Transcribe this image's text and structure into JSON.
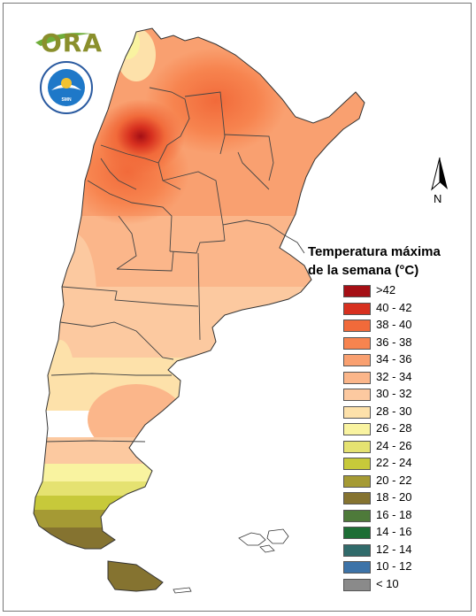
{
  "logo": {
    "text": "ORA"
  },
  "seal": {
    "text": "SERVICIO METEOROLÓGICO NACIONAL · ARGENTINA"
  },
  "north_arrow": {
    "label": "N"
  },
  "legend": {
    "title_line1": "Temperatura máxima",
    "title_line2": "de la semana (°C)",
    "items": [
      {
        "label": ">42",
        "color": "#a50f15"
      },
      {
        "label": "40 - 42",
        "color": "#d7301f"
      },
      {
        "label": "38 - 40",
        "color": "#f16a3a"
      },
      {
        "label": "36 - 38",
        "color": "#f7844f"
      },
      {
        "label": "34 - 36",
        "color": "#f9a070"
      },
      {
        "label": "32 - 34",
        "color": "#fbb68a"
      },
      {
        "label": "30 - 32",
        "color": "#fcc9a0"
      },
      {
        "label": "28 - 30",
        "color": "#fde1aa"
      },
      {
        "label": "26 - 28",
        "color": "#f9f3a0"
      },
      {
        "label": "24 - 26",
        "color": "#e5e271"
      },
      {
        "label": "22 - 24",
        "color": "#c7c93a"
      },
      {
        "label": "20 - 22",
        "color": "#a59a34"
      },
      {
        "label": "18 - 20",
        "color": "#857330"
      },
      {
        "label": "16 - 18",
        "color": "#4e7a3a"
      },
      {
        "label": "14 - 16",
        "color": "#1d6e35"
      },
      {
        "label": "12 - 14",
        "color": "#316b6b"
      },
      {
        "label": "10 - 12",
        "color": "#3d73a8"
      },
      {
        "label": "< 10",
        "color": "#8a8a8a"
      }
    ]
  }
}
